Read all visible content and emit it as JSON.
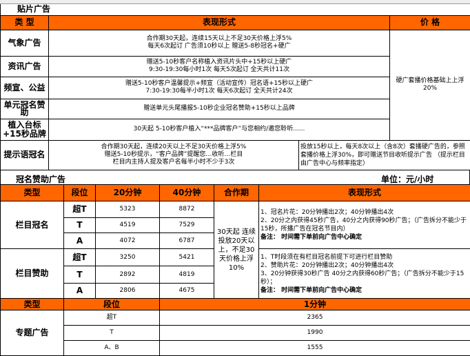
{
  "section1": {
    "title": "贴片广告",
    "headers": [
      "类 型",
      "表现形式",
      "价 格"
    ],
    "rows": [
      {
        "type": "气象广告",
        "lines": [
          "合作期30天起，连续15天以上不足30天价格上浮5%",
          "每天6次起订 广告须10秒以上 赠送5-8秒冠名+硬广"
        ]
      },
      {
        "type": "资讯广告",
        "lines": [
          "赠送5-10秒客户名称植入资讯片头中+15秒以上硬广",
          "9:30-19:30每小时1次 每天5次起订 全天共计11次"
        ]
      },
      {
        "type": "频宣、公益",
        "lines": [
          "赠送5-10秒客户温馨提示+频宣（活动宣传）冠名语+15秒以上硬广",
          "7:30-19:30每半小时1次 每天6次起订 全天共计24次"
        ]
      },
      {
        "type": "单元冠名赞助",
        "lines": [
          "赠送单元头尾播报5-10秒企业冠名赞助+15秒以上品牌"
        ]
      },
      {
        "type": "植入台标+15秒品牌",
        "lines": [
          "30天起 5-10秒客户植入“***品牌客户”与您相约/邀您聆听......"
        ]
      }
    ],
    "price_note": "硬广套播价格基础上上浮20%",
    "prompt_row": {
      "type": "提示语冠名",
      "lines": [
        "合作期30天起，连续20天以上不足30天价格上浮5%",
        "赠送5-10秒提示，“客户品牌”提醒您…收听…栏目",
        "栏目内主持人提及客户名每半小时不少于3次"
      ],
      "price": "投放15秒以上，每天8次以上（含8次）套播硬广告的，参照套播价格上浮30%，即可赠送节目收听提示广告 （提示栏目由广告中心与频率指定）"
    }
  },
  "section2": {
    "title": "冠名赞助广告",
    "unit": "单位：元/小时",
    "headers": [
      "类型",
      "段位",
      "20分钟",
      "40分钟",
      "合作期",
      "表现形式"
    ],
    "period": "30天起 连续投放20天以上，不足30天价格上浮10%",
    "groups": [
      {
        "type": "栏目冠名",
        "rows": [
          [
            "超T",
            "5323",
            "8872"
          ],
          [
            "T",
            "4519",
            "7529"
          ],
          [
            "A",
            "4072",
            "6787"
          ]
        ],
        "lines": [
          "1、冠名片花：20分钟播出2次；40分钟播出4次",
          "2、20分之内获得45秒广告，40分之内获得90秒广告；（广告拆分不能少于15秒，所播广告在冠名节目内）"
        ],
        "note": "备注：  时间需下单前向广告中心确定"
      },
      {
        "type": "栏目赞助",
        "rows": [
          [
            "超T",
            "3250",
            "5421"
          ],
          [
            "T",
            "2892",
            "4819"
          ],
          [
            "A",
            "2806",
            "4675"
          ]
        ],
        "lines": [
          "1、T时段须在有栏目冠名前提下可进行栏目赞助",
          "2、赞助片花：20分钟播出2次；40分钟播出4次",
          "3、20分钟获得30秒广告 40分之内获得60秒广告；（广告拆分不能少于15秒）；"
        ],
        "note": "备注：  时间需下单前向广告中心确定"
      }
    ]
  },
  "section3": {
    "headers": [
      "类型",
      "段位",
      "1分钟"
    ],
    "type": "专题广告",
    "rows": [
      [
        "超T",
        "2365"
      ],
      [
        "T",
        "1990"
      ],
      [
        "A、B",
        "1555"
      ]
    ]
  },
  "colors": {
    "header": "#ff6600"
  }
}
